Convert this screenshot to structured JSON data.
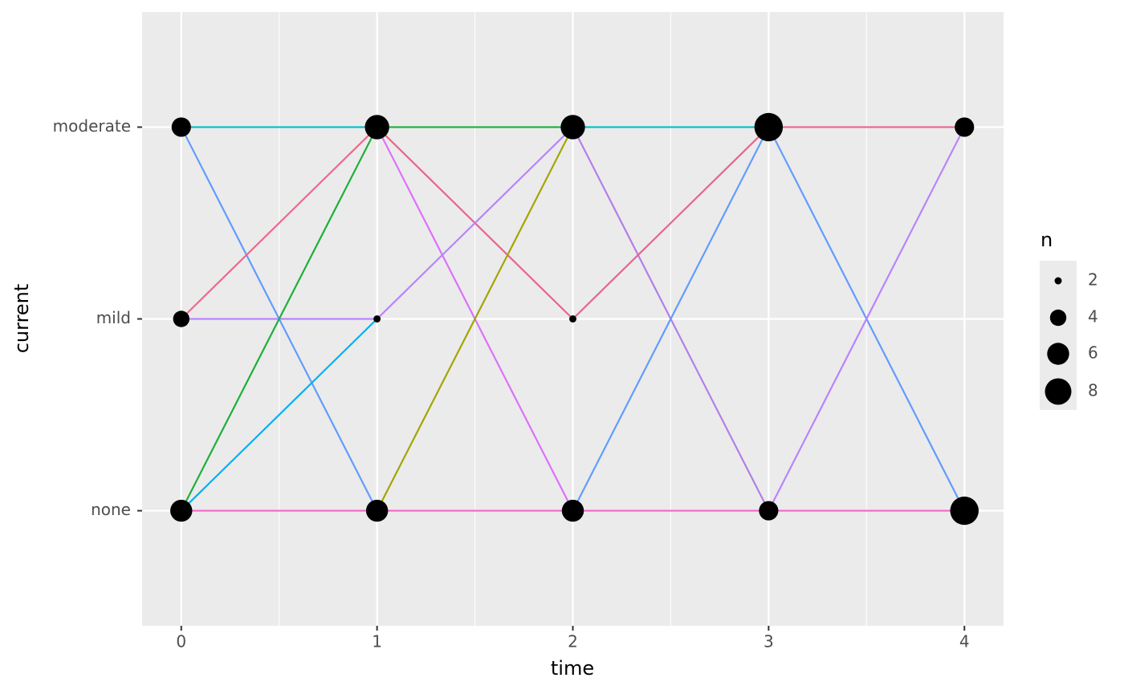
{
  "chart_data": {
    "type": "transition",
    "x_label": "time",
    "y_label": "current",
    "xlim": [
      -0.2,
      4.2
    ],
    "xticks": [
      0,
      1,
      2,
      3,
      4
    ],
    "categories": [
      "none",
      "mild",
      "moderate"
    ],
    "grid": true,
    "points": {
      "x": [
        0,
        0,
        0,
        1,
        1,
        1,
        2,
        2,
        2,
        3,
        3,
        4,
        4
      ],
      "y": [
        "moderate",
        "mild",
        "none",
        "moderate",
        "mild",
        "none",
        "moderate",
        "mild",
        "none",
        "moderate",
        "none",
        "moderate",
        "none"
      ],
      "n": [
        5,
        4,
        6,
        7,
        2,
        6,
        7,
        2,
        6,
        9,
        5,
        5,
        9
      ],
      "color": "#000000"
    },
    "size_legend": {
      "title": "n",
      "breaks": [
        2,
        4,
        6,
        8
      ]
    },
    "segments": [
      {
        "x": [
          0,
          1
        ],
        "y": [
          "moderate",
          "moderate"
        ],
        "color": "#00BFC4"
      },
      {
        "x": [
          0,
          1
        ],
        "y": [
          "moderate",
          "none"
        ],
        "color": "#619CFF"
      },
      {
        "x": [
          0,
          1
        ],
        "y": [
          "mild",
          "moderate"
        ],
        "color": "#EE6A8C"
      },
      {
        "x": [
          0,
          1
        ],
        "y": [
          "mild",
          "mild"
        ],
        "color": "#B983FF"
      },
      {
        "x": [
          0,
          1
        ],
        "y": [
          "none",
          "moderate"
        ],
        "color": "#1DAF3A"
      },
      {
        "x": [
          0,
          1
        ],
        "y": [
          "none",
          "mild"
        ],
        "color": "#00B0F6"
      },
      {
        "x": [
          0,
          1
        ],
        "y": [
          "none",
          "none"
        ],
        "color": "#F365C8"
      },
      {
        "x": [
          1,
          2
        ],
        "y": [
          "moderate",
          "moderate"
        ],
        "color": "#1DAF3A"
      },
      {
        "x": [
          1,
          2
        ],
        "y": [
          "moderate",
          "mild"
        ],
        "color": "#E7668F"
      },
      {
        "x": [
          1,
          2
        ],
        "y": [
          "moderate",
          "none"
        ],
        "color": "#DC71FA"
      },
      {
        "x": [
          1,
          2
        ],
        "y": [
          "mild",
          "moderate"
        ],
        "color": "#B983FF"
      },
      {
        "x": [
          1,
          2
        ],
        "y": [
          "none",
          "moderate"
        ],
        "color": "#A3A500"
      },
      {
        "x": [
          1,
          2
        ],
        "y": [
          "none",
          "none"
        ],
        "color": "#F365C8"
      },
      {
        "x": [
          2,
          3
        ],
        "y": [
          "moderate",
          "moderate"
        ],
        "color": "#00BFC4"
      },
      {
        "x": [
          2,
          3
        ],
        "y": [
          "moderate",
          "none"
        ],
        "color": "#B37FE6"
      },
      {
        "x": [
          2,
          3
        ],
        "y": [
          "mild",
          "moderate"
        ],
        "color": "#E7668F"
      },
      {
        "x": [
          2,
          3
        ],
        "y": [
          "none",
          "moderate"
        ],
        "color": "#619CFF"
      },
      {
        "x": [
          2,
          3
        ],
        "y": [
          "none",
          "none"
        ],
        "color": "#F365C8"
      },
      {
        "x": [
          3,
          4
        ],
        "y": [
          "moderate",
          "moderate"
        ],
        "color": "#E7668F"
      },
      {
        "x": [
          3,
          4
        ],
        "y": [
          "moderate",
          "none"
        ],
        "color": "#619CFF"
      },
      {
        "x": [
          3,
          4
        ],
        "y": [
          "none",
          "moderate"
        ],
        "color": "#B983FF"
      },
      {
        "x": [
          3,
          4
        ],
        "y": [
          "none",
          "none"
        ],
        "color": "#F365C8"
      }
    ]
  }
}
